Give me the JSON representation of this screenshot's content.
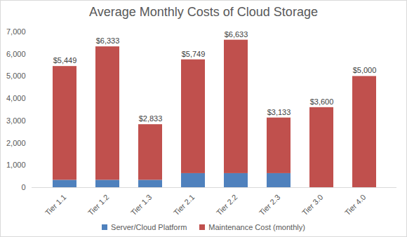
{
  "chart_data": {
    "type": "bar",
    "title": "Average Monthly Costs of Cloud Storage",
    "categories": [
      "Tier 1.1",
      "Tier 1.2",
      "Tier 1.3",
      "Tier 2.1",
      "Tier 2.2",
      "Tier 2.3",
      "Tier 3.0",
      "Tier 4.0"
    ],
    "series": [
      {
        "name": "Server/Cloud Platform",
        "color": "#4f81bd",
        "values": [
          333,
          333,
          333,
          633,
          633,
          633,
          0,
          0
        ]
      },
      {
        "name": "Maintenance Cost (monthly)",
        "color": "#c0504d",
        "values": [
          5116,
          6000,
          2500,
          5116,
          6000,
          2500,
          3600,
          5000
        ]
      }
    ],
    "totals": [
      5449,
      6333,
      2833,
      5749,
      6633,
      3133,
      3600,
      5000
    ],
    "total_labels": [
      "$5,449",
      "$6,333",
      "$2,833",
      "$5,749",
      "$6,633",
      "$3,133",
      "$3,600",
      "$5,000"
    ],
    "stacked": true,
    "grid": false,
    "legend": "bottom",
    "ylim": [
      0,
      7000
    ],
    "yticks": [
      0,
      1000,
      2000,
      3000,
      4000,
      5000,
      6000,
      7000
    ]
  }
}
